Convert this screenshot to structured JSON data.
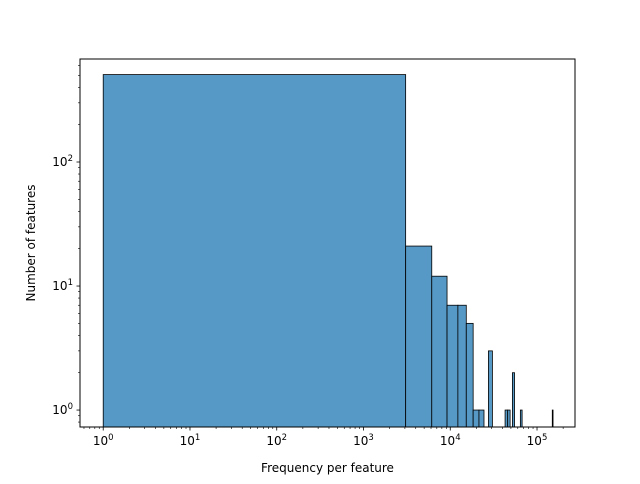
{
  "chart_data": {
    "type": "bar",
    "title": "",
    "xlabel": "Frequency per feature",
    "ylabel": "Number of features",
    "xscale": "log",
    "yscale": "log",
    "xlim": [
      0.54,
      274000
    ],
    "ylim": [
      0.73,
      677
    ],
    "grid": false,
    "color": "#5799c6",
    "edge_color": "#000000",
    "bin_width": 3060,
    "bins": [
      {
        "start": 1,
        "end": 3061,
        "count": 507
      },
      {
        "start": 3061,
        "end": 6121,
        "count": 21
      },
      {
        "start": 6121,
        "end": 9181,
        "count": 12
      },
      {
        "start": 9181,
        "end": 12241,
        "count": 7
      },
      {
        "start": 12241,
        "end": 15301,
        "count": 7
      },
      {
        "start": 15301,
        "end": 18361,
        "count": 5
      },
      {
        "start": 18361,
        "end": 21421,
        "count": 1
      },
      {
        "start": 21421,
        "end": 24481,
        "count": 1
      },
      {
        "start": 27541,
        "end": 30601,
        "count": 3
      },
      {
        "start": 42841,
        "end": 45901,
        "count": 1
      },
      {
        "start": 45901,
        "end": 48961,
        "count": 1
      },
      {
        "start": 52021,
        "end": 55081,
        "count": 2
      },
      {
        "start": 64261,
        "end": 67321,
        "count": 1
      },
      {
        "start": 149941,
        "end": 153001,
        "count": 1
      }
    ],
    "x_ticks": [
      {
        "value": 1,
        "base": "10",
        "exp": "0"
      },
      {
        "value": 10,
        "base": "10",
        "exp": "1"
      },
      {
        "value": 100,
        "base": "10",
        "exp": "2"
      },
      {
        "value": 1000,
        "base": "10",
        "exp": "3"
      },
      {
        "value": 10000,
        "base": "10",
        "exp": "4"
      },
      {
        "value": 100000,
        "base": "10",
        "exp": "5"
      }
    ],
    "y_ticks": [
      {
        "value": 1,
        "base": "10",
        "exp": "0"
      },
      {
        "value": 10,
        "base": "10",
        "exp": "1"
      },
      {
        "value": 100,
        "base": "10",
        "exp": "2"
      }
    ]
  }
}
